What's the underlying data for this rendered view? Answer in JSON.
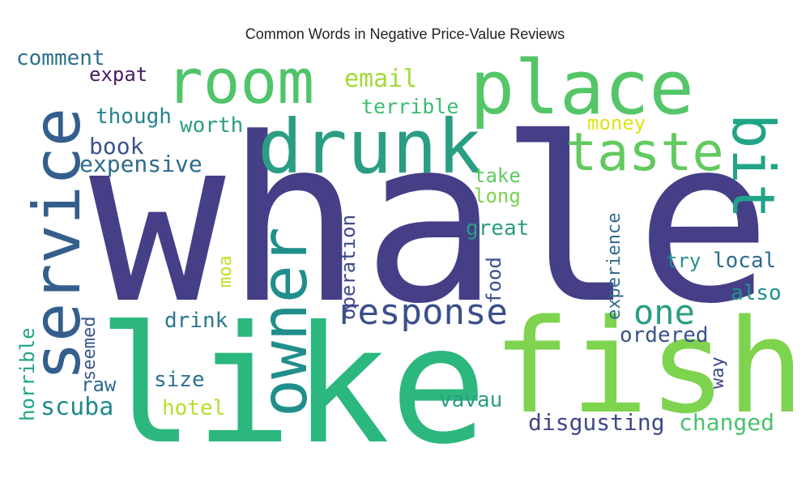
{
  "chart_data": {
    "type": "wordcloud",
    "title": "Common Words in Negative Price-Value Reviews",
    "words": [
      {
        "text": "whale",
        "color": "#453f88"
      },
      {
        "text": "like",
        "color": "#2cb77e"
      },
      {
        "text": "fish",
        "color": "#7ed34f"
      },
      {
        "text": "drunk",
        "color": "#2a9d83"
      },
      {
        "text": "place",
        "color": "#54c668"
      },
      {
        "text": "room",
        "color": "#50c46a"
      },
      {
        "text": "service",
        "color": "#345f8d"
      },
      {
        "text": "owner",
        "color": "#208f8c"
      },
      {
        "text": "taste",
        "color": "#62ca5f"
      },
      {
        "text": "bit",
        "color": "#20a486"
      },
      {
        "text": "response",
        "color": "#3c4f8a"
      },
      {
        "text": "one",
        "color": "#2a9d83"
      },
      {
        "text": "expensive",
        "color": "#2f6b8e"
      },
      {
        "text": "book",
        "color": "#3a548c"
      },
      {
        "text": "though",
        "color": "#26828e"
      },
      {
        "text": "worth",
        "color": "#2a9d83"
      },
      {
        "text": "comment",
        "color": "#2d708e"
      },
      {
        "text": "expat",
        "color": "#4b1a63"
      },
      {
        "text": "email",
        "color": "#a2da37"
      },
      {
        "text": "terrible",
        "color": "#3dbc74"
      },
      {
        "text": "money",
        "color": "#dde318"
      },
      {
        "text": "take",
        "color": "#5ec962"
      },
      {
        "text": "long",
        "color": "#7ad151"
      },
      {
        "text": "great",
        "color": "#2a9d83"
      },
      {
        "text": "operation",
        "color": "#3e4989"
      },
      {
        "text": "experience",
        "color": "#2e6b8e"
      },
      {
        "text": "food",
        "color": "#3b528b"
      },
      {
        "text": "try",
        "color": "#21918c"
      },
      {
        "text": "local",
        "color": "#2f6c8e"
      },
      {
        "text": "also",
        "color": "#21918c"
      },
      {
        "text": "moa",
        "color": "#c2df23"
      },
      {
        "text": "drink",
        "color": "#2a788e"
      },
      {
        "text": "ordered",
        "color": "#3b528b"
      },
      {
        "text": "way",
        "color": "#3e4989"
      },
      {
        "text": "seemed",
        "color": "#39568c"
      },
      {
        "text": "horrible",
        "color": "#20a486"
      },
      {
        "text": "raw",
        "color": "#31688e"
      },
      {
        "text": "size",
        "color": "#2c728e"
      },
      {
        "text": "scuba",
        "color": "#23898e"
      },
      {
        "text": "hotel",
        "color": "#b5de2b"
      },
      {
        "text": "vavau",
        "color": "#2a9d83"
      },
      {
        "text": "disgusting",
        "color": "#3e4989"
      },
      {
        "text": "changed",
        "color": "#4ac16d"
      }
    ]
  }
}
